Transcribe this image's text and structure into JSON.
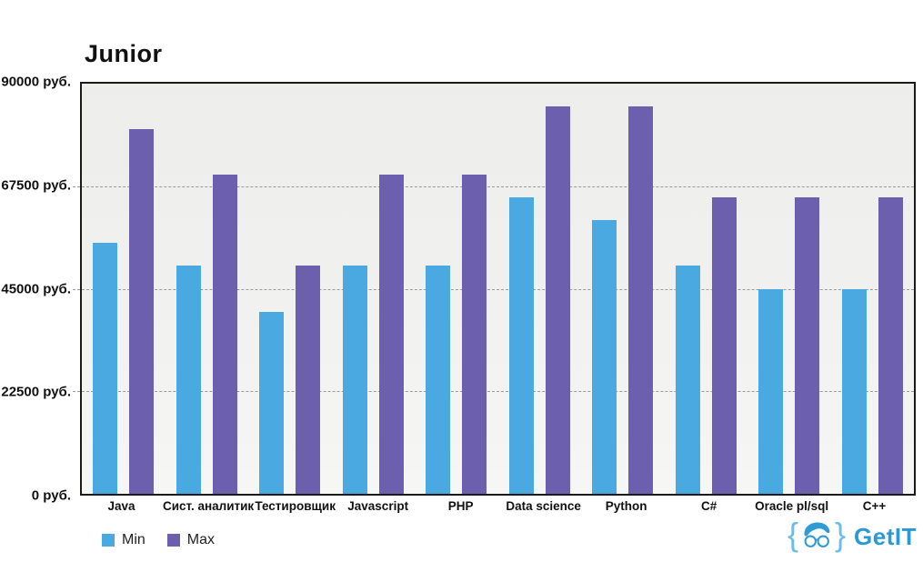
{
  "title": "Junior",
  "chart_data": {
    "type": "bar",
    "title": "Junior",
    "categories": [
      "Java",
      "Сист. аналитик",
      "Тестировщик",
      "Javascript",
      "PHP",
      "Data science",
      "Python",
      "C#",
      "Oracle pl/sql",
      "C++"
    ],
    "series": [
      {
        "name": "Min",
        "color": "#49a9e0",
        "values": [
          55000,
          50000,
          40000,
          50000,
          50000,
          65000,
          60000,
          50000,
          45000,
          45000
        ]
      },
      {
        "name": "Max",
        "color": "#6c60ae",
        "values": [
          80000,
          70000,
          50000,
          70000,
          70000,
          85000,
          85000,
          65000,
          65000,
          65000
        ]
      }
    ],
    "ylabel": "руб.",
    "ylim": [
      0,
      90000
    ],
    "yticks": [
      {
        "value": 90000,
        "label": "90000 руб."
      },
      {
        "value": 67500,
        "label": "67500 руб."
      },
      {
        "value": 45000,
        "label": "45000 руб."
      },
      {
        "value": 22500,
        "label": "22500 руб."
      },
      {
        "value": 0,
        "label": "0 руб."
      }
    ],
    "grid": "horizontal-dashed",
    "legend_position": "bottom-left"
  },
  "legend": {
    "items": [
      {
        "label": "Min",
        "color": "#49a9e0"
      },
      {
        "label": "Max",
        "color": "#6c60ae"
      }
    ]
  },
  "branding": {
    "brace_open": "{",
    "brace_close": "}",
    "logo_text": "GetIT",
    "color": "#2b99d5"
  }
}
